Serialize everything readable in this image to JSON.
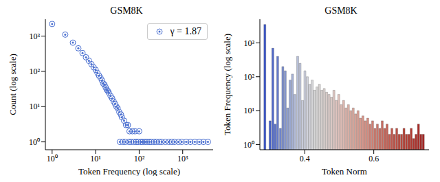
{
  "chart_data": [
    {
      "type": "scatter",
      "title": "GSM8K",
      "x_label": "Token Frequency (log scale)",
      "y_label": "Count (log scale)",
      "log": true,
      "legend": "upper right",
      "xlim": [
        0.7,
        5000
      ],
      "ylim": [
        0.6,
        3000
      ],
      "xticks": [
        {
          "value": 1,
          "label": "10⁰"
        },
        {
          "value": 10,
          "label": "10¹"
        },
        {
          "value": 100,
          "label": "10²"
        },
        {
          "value": 1000,
          "label": "10³"
        }
      ],
      "yticks": [
        {
          "value": 1,
          "label": "10⁰"
        },
        {
          "value": 10,
          "label": "10¹"
        },
        {
          "value": 100,
          "label": "10²"
        },
        {
          "value": 1000,
          "label": "10³"
        }
      ],
      "series": [
        {
          "name": "γ = 1.87",
          "color": "#4a6fd0",
          "marker": "circle",
          "x": [
            1,
            2,
            3,
            4,
            5,
            6,
            7,
            8,
            9,
            10,
            11,
            12,
            13,
            14,
            15,
            16,
            17,
            18,
            19,
            20,
            22,
            24,
            26,
            28,
            30,
            32,
            35,
            38,
            40,
            45,
            50,
            55,
            60,
            70,
            80,
            100,
            36,
            42,
            48,
            58,
            65,
            75,
            85,
            95,
            110,
            120,
            135,
            150,
            170,
            190,
            220,
            250,
            290,
            330,
            400,
            480,
            560,
            650,
            800,
            950,
            1200,
            1500,
            1900,
            2400,
            3000,
            3800
          ],
          "values": [
            2200,
            1100,
            650,
            450,
            330,
            250,
            200,
            160,
            130,
            110,
            90,
            75,
            65,
            55,
            45,
            42,
            35,
            30,
            28,
            25,
            20,
            17,
            14,
            12,
            10,
            9,
            7,
            6,
            5,
            4,
            3,
            3,
            2,
            2,
            2,
            2,
            1,
            1,
            1,
            1,
            1,
            1,
            1,
            1,
            1,
            1,
            1,
            1,
            1,
            1,
            1,
            1,
            1,
            1,
            1,
            1,
            1,
            1,
            1,
            1,
            1,
            1,
            1,
            1,
            1,
            1
          ]
        }
      ]
    },
    {
      "type": "bar",
      "title": "GSM8K",
      "x_label": "Token Norm",
      "y_label": "Token Frequency (log scale)",
      "log": "y",
      "xlim": [
        0.27,
        0.76
      ],
      "xticks": [
        0.4,
        0.6
      ],
      "ylim": [
        0.7,
        5000
      ],
      "yticks": [
        {
          "value": 1,
          "label": "10⁰"
        },
        {
          "value": 10,
          "label": "10¹"
        },
        {
          "value": 100,
          "label": "10²"
        },
        {
          "value": 1000,
          "label": "10³"
        }
      ],
      "x": [
        0.285,
        0.3,
        0.308,
        0.315,
        0.322,
        0.33,
        0.337,
        0.344,
        0.351,
        0.358,
        0.365,
        0.372,
        0.38,
        0.387,
        0.394,
        0.401,
        0.408,
        0.415,
        0.422,
        0.429,
        0.436,
        0.443,
        0.45,
        0.457,
        0.464,
        0.471,
        0.478,
        0.485,
        0.492,
        0.499,
        0.506,
        0.513,
        0.52,
        0.527,
        0.534,
        0.541,
        0.548,
        0.555,
        0.562,
        0.569,
        0.576,
        0.583,
        0.59,
        0.597,
        0.604,
        0.611,
        0.618,
        0.625,
        0.632,
        0.639,
        0.646,
        0.653,
        0.66,
        0.667,
        0.674,
        0.681,
        0.688,
        0.695,
        0.702,
        0.709,
        0.716,
        0.723,
        0.73,
        0.737,
        0.744
      ],
      "values": [
        3500,
        5,
        700,
        4,
        400,
        3,
        200,
        150,
        12,
        80,
        120,
        30,
        400,
        250,
        20,
        150,
        100,
        60,
        80,
        40,
        50,
        60,
        40,
        45,
        35,
        30,
        25,
        40,
        20,
        30,
        15,
        20,
        12,
        15,
        10,
        12,
        8,
        10,
        6,
        7,
        5,
        6,
        4,
        5,
        3,
        4,
        3,
        5,
        3,
        4,
        2,
        3,
        2,
        3,
        2,
        2,
        3,
        2,
        2,
        3,
        1.5,
        2,
        4,
        2,
        2
      ],
      "colors": [
        "#3a55c8",
        "#4560c9",
        "#5068c8",
        "#5a72c9",
        "#657bcb",
        "#7085cc",
        "#7b8ecd",
        "#8697cf",
        "#90a0d1",
        "#9ba9d3",
        "#a5b1d5",
        "#afb9d7",
        "#b8c0d9",
        "#c0c6da",
        "#c7cbdb",
        "#ccd0dc",
        "#d0d2dc",
        "#d3d3da",
        "#d5d5d8",
        "#d6d6d6",
        "#d6d4d4",
        "#d7d3d2",
        "#d8d2d0",
        "#d9d0ce",
        "#dacecb",
        "#dbccc9",
        "#dcc9c5",
        "#ddc6c2",
        "#dec3be",
        "#dec0ba",
        "#dfbcb5",
        "#deb8b0",
        "#deb4ab",
        "#ddb0a6",
        "#dcaca1",
        "#dba79c",
        "#daa397",
        "#d99e92",
        "#d8998d",
        "#d79488",
        "#d58f83",
        "#d48a7e",
        "#d28579",
        "#d08074",
        "#ce7b6f",
        "#cc766a",
        "#ca7165",
        "#c86c60",
        "#c6675b",
        "#c46256",
        "#c25d52",
        "#c0584d",
        "#be5449",
        "#bc5045",
        "#ba4c41",
        "#b8483d",
        "#b64439",
        "#b44036",
        "#b23c33",
        "#b03830",
        "#ae342d",
        "#ac302a",
        "#aa2c28",
        "#a82926",
        "#a62624"
      ]
    }
  ]
}
